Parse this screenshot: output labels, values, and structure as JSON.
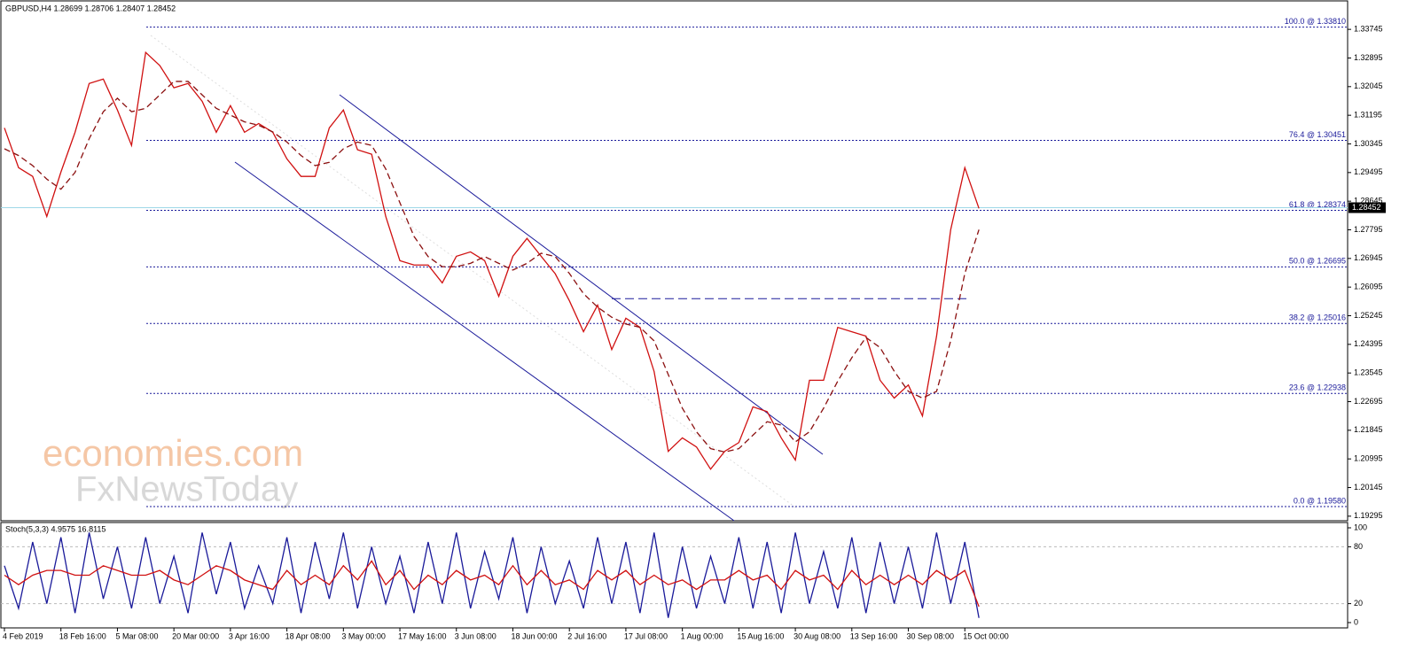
{
  "chart_data": [
    {
      "type": "line",
      "title": "GBPUSD,H4  1.28699 1.28706 1.28407 1.28452",
      "categories": [
        "4 Feb 2019",
        null,
        null,
        null,
        "18 Feb 16:00",
        null,
        null,
        null,
        "5 Mar 08:00",
        null,
        null,
        null,
        "20 Mar 00:00",
        null,
        null,
        null,
        "3 Apr 16:00",
        null,
        null,
        null,
        "18 Apr 08:00",
        null,
        null,
        null,
        "3 May 00:00",
        null,
        null,
        null,
        "17 May 16:00",
        null,
        null,
        null,
        "3 Jun 08:00",
        null,
        null,
        null,
        "18 Jun 00:00",
        null,
        null,
        null,
        "2 Jul 16:00",
        null,
        null,
        null,
        "17 Jul 08:00",
        null,
        null,
        null,
        "1 Aug 00:00",
        null,
        null,
        null,
        "15 Aug 16:00",
        null,
        null,
        null,
        "30 Aug 08:00",
        null,
        null,
        null,
        "13 Sep 16:00",
        null,
        null,
        null,
        "30 Sep 08:00",
        null,
        null,
        null,
        "15 Oct 00:00",
        null
      ],
      "series": [
        {
          "color": "#d01010",
          "values": [
            1.3082,
            1.2964,
            1.2938,
            1.2819,
            1.2951,
            1.3069,
            1.3214,
            1.3227,
            1.3135,
            1.303,
            1.3306,
            1.3267,
            1.3201,
            1.3214,
            1.3161,
            1.3069,
            1.3148,
            1.3069,
            1.3095,
            1.3069,
            1.299,
            1.2938,
            1.2938,
            1.3082,
            1.3135,
            1.3017,
            1.3004,
            1.2819,
            1.2688,
            1.2675,
            1.2675,
            1.2622,
            1.2701,
            1.2714,
            1.2688,
            1.2582,
            1.2701,
            1.2754,
            1.2701,
            1.2649,
            1.2569,
            1.2477,
            1.2556,
            1.2424,
            1.2517,
            1.249,
            1.2359,
            1.2122,
            1.2162,
            1.2135,
            1.2069,
            1.2122,
            1.2148,
            1.2254,
            1.224,
            1.2162,
            1.2096,
            1.2333,
            1.2333,
            1.249,
            1.2477,
            1.2464,
            1.2333,
            1.228,
            1.2319,
            1.2227,
            1.2464,
            1.278,
            1.2964,
            1.2843
          ]
        },
        {
          "color": "#8b1010",
          "dashed": true,
          "values": [
            1.302,
            1.3,
            1.297,
            1.293,
            1.29,
            1.295,
            1.305,
            1.313,
            1.317,
            1.313,
            1.314,
            1.318,
            1.322,
            1.322,
            1.318,
            1.314,
            1.312,
            1.31,
            1.309,
            1.307,
            1.304,
            1.3,
            1.297,
            1.298,
            1.302,
            1.304,
            1.303,
            1.296,
            1.286,
            1.276,
            1.27,
            1.267,
            1.267,
            1.268,
            1.27,
            1.268,
            1.266,
            1.268,
            1.271,
            1.27,
            1.265,
            1.259,
            1.255,
            1.252,
            1.25,
            1.249,
            1.245,
            1.235,
            1.225,
            1.218,
            1.213,
            1.212,
            1.213,
            1.217,
            1.221,
            1.22,
            1.215,
            1.218,
            1.225,
            1.233,
            1.24,
            1.246,
            1.243,
            1.236,
            1.23,
            1.228,
            1.23,
            1.245,
            1.265,
            1.278
          ]
        }
      ],
      "ylim": [
        1.1916,
        1.3459
      ],
      "yticks": [
        1.19295,
        1.20145,
        1.20995,
        1.21845,
        1.22695,
        1.23545,
        1.24395,
        1.25245,
        1.26095,
        1.26945,
        1.27795,
        1.28645,
        1.29495,
        1.30345,
        1.31195,
        1.32045,
        1.32895,
        1.33745
      ],
      "levels": [
        {
          "value": 1.3381,
          "label": "100.0 @ 1.33810"
        },
        {
          "value": 1.30451,
          "label": "76.4 @ 1.30451"
        },
        {
          "value": 1.28374,
          "label": "61.8 @ 1.28374"
        },
        {
          "value": 1.26695,
          "label": "50.0 @ 1.26695"
        },
        {
          "value": 1.25016,
          "label": "38.2 @ 1.25016"
        },
        {
          "value": 1.22938,
          "label": "23.6 @ 1.22938"
        },
        {
          "value": 1.1958,
          "label": "0.0 @ 1.19580"
        }
      ],
      "resistance": 1.2575,
      "last_price": 1.28452,
      "watermark": [
        "economies.com",
        "FxNewsToday"
      ]
    },
    {
      "type": "line",
      "title": "Stoch(5,3,3) 4.9575 16.8115",
      "series": [
        {
          "color": "#1a1a9a",
          "values": [
            60,
            15,
            85,
            20,
            90,
            10,
            95,
            25,
            80,
            15,
            90,
            20,
            70,
            10,
            95,
            30,
            85,
            15,
            60,
            20,
            90,
            10,
            85,
            25,
            95,
            15,
            80,
            20,
            70,
            10,
            85,
            20,
            95,
            15,
            75,
            25,
            90,
            10,
            80,
            20,
            65,
            15,
            90,
            20,
            85,
            10,
            95,
            5,
            80,
            15,
            70,
            20,
            90,
            15,
            85,
            10,
            95,
            20,
            75,
            15,
            90,
            10,
            85,
            20,
            80,
            15,
            95,
            20,
            85,
            4.9575
          ]
        },
        {
          "color": "#d01010",
          "values": [
            50,
            40,
            50,
            55,
            55,
            50,
            50,
            60,
            55,
            50,
            50,
            55,
            45,
            40,
            50,
            60,
            55,
            45,
            40,
            35,
            55,
            40,
            50,
            40,
            60,
            45,
            65,
            40,
            55,
            35,
            50,
            40,
            55,
            45,
            50,
            40,
            60,
            40,
            55,
            40,
            45,
            35,
            55,
            45,
            55,
            40,
            50,
            40,
            45,
            35,
            45,
            45,
            55,
            45,
            50,
            35,
            55,
            45,
            50,
            35,
            55,
            40,
            50,
            40,
            50,
            40,
            55,
            45,
            55,
            16.8115
          ]
        }
      ],
      "ylim": [
        -5.6,
        105.6
      ],
      "yticks": [
        0,
        20,
        80,
        100
      ],
      "grid_ticks": [
        20,
        80
      ]
    }
  ]
}
